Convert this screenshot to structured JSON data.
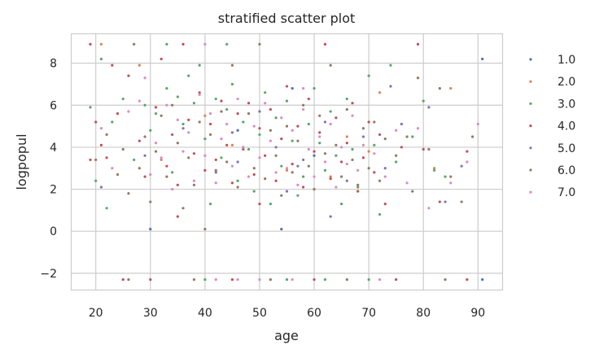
{
  "chart_data": {
    "type": "scatter",
    "title": "stratified scatter plot",
    "xlabel": "age",
    "ylabel": "logpopul",
    "xlim": [
      15.5,
      94.5
    ],
    "ylim": [
      -2.8,
      9.4
    ],
    "xticks": [
      20,
      30,
      40,
      50,
      60,
      70,
      80,
      90
    ],
    "yticks": [
      -2,
      0,
      2,
      4,
      6,
      8
    ],
    "xtick_labels": [
      "20",
      "30",
      "40",
      "50",
      "60",
      "70",
      "80",
      "90"
    ],
    "ytick_labels": [
      "−2",
      "0",
      "2",
      "4",
      "6",
      "8"
    ],
    "grid": true,
    "legend_position": "right",
    "series": [
      {
        "name": "1.0",
        "color": "#4c72b0",
        "points": [
          [
            30,
            0.1
          ],
          [
            54,
            0.1
          ],
          [
            90.8,
            8.2
          ],
          [
            90.8,
            -2.3
          ],
          [
            56,
            6.8
          ],
          [
            46,
            4.8
          ],
          [
            60,
            3.6
          ]
        ]
      },
      {
        "name": "2.0",
        "color": "#dd8452",
        "points": [
          [
            21,
            8.9
          ],
          [
            28,
            7.9
          ],
          [
            72,
            6.6
          ],
          [
            85,
            6.8
          ],
          [
            70,
            3.8
          ],
          [
            40,
            5.5
          ],
          [
            66,
            4.5
          ],
          [
            55,
            2.9
          ],
          [
            82,
            3.0
          ],
          [
            32,
            3.4
          ],
          [
            45,
            4.1
          ],
          [
            63,
            2.6
          ]
        ]
      },
      {
        "name": "3.0",
        "color": "#55a868",
        "points": [
          [
            19,
            5.9
          ],
          [
            20,
            2.4
          ],
          [
            21,
            8.2
          ],
          [
            22,
            1.1
          ],
          [
            23,
            5.2
          ],
          [
            25,
            6.3
          ],
          [
            27,
            3.4
          ],
          [
            29,
            6.0
          ],
          [
            30,
            4.8
          ],
          [
            31,
            5.6
          ],
          [
            33,
            6.8
          ],
          [
            34,
            2.8
          ],
          [
            35,
            6.4
          ],
          [
            36,
            5.1
          ],
          [
            37,
            7.4
          ],
          [
            38,
            6.1
          ],
          [
            39,
            7.9
          ],
          [
            40,
            4.4
          ],
          [
            41,
            1.3
          ],
          [
            42,
            6.3
          ],
          [
            43,
            3.5
          ],
          [
            44,
            5.8
          ],
          [
            45,
            7.0
          ],
          [
            46,
            2.4
          ],
          [
            47,
            5.2
          ],
          [
            48,
            3.9
          ],
          [
            49,
            1.9
          ],
          [
            50,
            4.6
          ],
          [
            51,
            6.6
          ],
          [
            52,
            1.3
          ],
          [
            53,
            5.4
          ],
          [
            54,
            3.1
          ],
          [
            55,
            6.2
          ],
          [
            56,
            4.3
          ],
          [
            57,
            1.7
          ],
          [
            58,
            2.6
          ],
          [
            59,
            5.1
          ],
          [
            60,
            6.8
          ],
          [
            61,
            4.2
          ],
          [
            62,
            2.9
          ],
          [
            63,
            5.7
          ],
          [
            64,
            3.6
          ],
          [
            65,
            1.3
          ],
          [
            66,
            6.3
          ],
          [
            67,
            3.9
          ],
          [
            68,
            2.1
          ],
          [
            70,
            7.4
          ],
          [
            71,
            4.1
          ],
          [
            72,
            0.8
          ],
          [
            74,
            7.9
          ],
          [
            75,
            3.3
          ],
          [
            78,
            4.5
          ],
          [
            80,
            6.2
          ],
          [
            82,
            2.9
          ],
          [
            84,
            2.6
          ],
          [
            40,
            -2.3
          ],
          [
            55,
            -2.3
          ],
          [
            62,
            -2.3
          ],
          [
            70,
            -2.3
          ],
          [
            33,
            8.9
          ],
          [
            44,
            8.9
          ]
        ]
      },
      {
        "name": "4.0",
        "color": "#c44e52",
        "points": [
          [
            19,
            8.9
          ],
          [
            19,
            3.4
          ],
          [
            20,
            5.2
          ],
          [
            21,
            4.1
          ],
          [
            22,
            3.5
          ],
          [
            23,
            7.9
          ],
          [
            24,
            5.6
          ],
          [
            26,
            7.4
          ],
          [
            28,
            4.3
          ],
          [
            29,
            2.6
          ],
          [
            31,
            5.9
          ],
          [
            32,
            8.2
          ],
          [
            33,
            3.1
          ],
          [
            34,
            4.6
          ],
          [
            35,
            2.2
          ],
          [
            36,
            8.9
          ],
          [
            37,
            5.3
          ],
          [
            38,
            3.7
          ],
          [
            39,
            6.6
          ],
          [
            40,
            2.9
          ],
          [
            41,
            5.1
          ],
          [
            42,
            3.4
          ],
          [
            43,
            6.2
          ],
          [
            44,
            4.1
          ],
          [
            45,
            2.3
          ],
          [
            46,
            5.6
          ],
          [
            47,
            3.9
          ],
          [
            48,
            6.1
          ],
          [
            49,
            2.7
          ],
          [
            50,
            4.9
          ],
          [
            51,
            3.6
          ],
          [
            52,
            5.8
          ],
          [
            53,
            2.4
          ],
          [
            54,
            4.4
          ],
          [
            55,
            6.9
          ],
          [
            56,
            3.2
          ],
          [
            57,
            5.0
          ],
          [
            58,
            2.1
          ],
          [
            59,
            6.3
          ],
          [
            60,
            3.8
          ],
          [
            61,
            4.7
          ],
          [
            62,
            8.9
          ],
          [
            63,
            2.5
          ],
          [
            64,
            5.4
          ],
          [
            65,
            3.3
          ],
          [
            66,
            4.2
          ],
          [
            67,
            6.1
          ],
          [
            68,
            1.9
          ],
          [
            69,
            3.5
          ],
          [
            70,
            5.2
          ],
          [
            71,
            2.8
          ],
          [
            72,
            4.6
          ],
          [
            73,
            1.3
          ],
          [
            74,
            6.9
          ],
          [
            76,
            4.0
          ],
          [
            79,
            8.9
          ],
          [
            80,
            3.9
          ],
          [
            83,
            1.4
          ],
          [
            88,
            3.8
          ],
          [
            30,
            -2.3
          ],
          [
            45,
            -2.3
          ],
          [
            60,
            -2.3
          ],
          [
            75,
            -2.3
          ],
          [
            88,
            -2.3
          ],
          [
            25,
            -2.3
          ],
          [
            35,
            0.7
          ],
          [
            50,
            1.3
          ]
        ]
      },
      {
        "name": "5.0",
        "color": "#8172b3",
        "points": [
          [
            21,
            2.1
          ],
          [
            29,
            3.6
          ],
          [
            36,
            4.9
          ],
          [
            42,
            2.8
          ],
          [
            46,
            3.3
          ],
          [
            50,
            5.7
          ],
          [
            53,
            4.0
          ],
          [
            57,
            3.1
          ],
          [
            62,
            5.2
          ],
          [
            66,
            2.4
          ],
          [
            69,
            4.5
          ],
          [
            73,
            3.0
          ],
          [
            76,
            5.1
          ],
          [
            78,
            1.9
          ],
          [
            81,
            5.9
          ],
          [
            84,
            1.4
          ],
          [
            87,
            3.1
          ],
          [
            74,
            6.9
          ],
          [
            55,
            1.9
          ],
          [
            45,
            4.7
          ],
          [
            58,
            3.4
          ],
          [
            63,
            0.7
          ]
        ]
      },
      {
        "name": "6.0",
        "color": "#937860",
        "points": [
          [
            20,
            3.4
          ],
          [
            22,
            4.6
          ],
          [
            24,
            2.7
          ],
          [
            25,
            3.9
          ],
          [
            26,
            1.8
          ],
          [
            27,
            8.9
          ],
          [
            28,
            3.0
          ],
          [
            29,
            4.5
          ],
          [
            30,
            1.4
          ],
          [
            31,
            3.8
          ],
          [
            32,
            5.5
          ],
          [
            33,
            2.6
          ],
          [
            34,
            6.0
          ],
          [
            35,
            4.2
          ],
          [
            36,
            1.1
          ],
          [
            37,
            3.5
          ],
          [
            38,
            2.2
          ],
          [
            39,
            5.2
          ],
          [
            40,
            0.1
          ],
          [
            41,
            4.6
          ],
          [
            42,
            2.9
          ],
          [
            43,
            5.7
          ],
          [
            44,
            3.3
          ],
          [
            45,
            7.9
          ],
          [
            46,
            2.1
          ],
          [
            47,
            4.0
          ],
          [
            48,
            5.6
          ],
          [
            49,
            3.0
          ],
          [
            50,
            8.9
          ],
          [
            51,
            2.5
          ],
          [
            52,
            4.8
          ],
          [
            53,
            3.6
          ],
          [
            54,
            1.7
          ],
          [
            55,
            5.0
          ],
          [
            56,
            2.8
          ],
          [
            57,
            4.3
          ],
          [
            58,
            6.0
          ],
          [
            59,
            3.1
          ],
          [
            60,
            2.0
          ],
          [
            61,
            5.5
          ],
          [
            62,
            3.7
          ],
          [
            63,
            7.9
          ],
          [
            64,
            4.1
          ],
          [
            65,
            2.6
          ],
          [
            66,
            5.8
          ],
          [
            67,
            3.4
          ],
          [
            68,
            2.2
          ],
          [
            69,
            4.9
          ],
          [
            70,
            3.0
          ],
          [
            71,
            5.2
          ],
          [
            72,
            2.4
          ],
          [
            73,
            4.4
          ],
          [
            75,
            3.6
          ],
          [
            77,
            4.5
          ],
          [
            79,
            7.3
          ],
          [
            81,
            3.9
          ],
          [
            83,
            6.8
          ],
          [
            85,
            2.6
          ],
          [
            87,
            1.4
          ],
          [
            89,
            4.5
          ],
          [
            26,
            -2.3
          ],
          [
            38,
            -2.3
          ],
          [
            52,
            -2.3
          ],
          [
            66,
            -2.3
          ],
          [
            84,
            -2.3
          ]
        ]
      },
      {
        "name": "7.0",
        "color": "#da8bc3",
        "points": [
          [
            21,
            4.9
          ],
          [
            23,
            3.0
          ],
          [
            26,
            5.7
          ],
          [
            28,
            6.2
          ],
          [
            29,
            7.3
          ],
          [
            30,
            2.7
          ],
          [
            31,
            4.2
          ],
          [
            32,
            3.5
          ],
          [
            33,
            6.0
          ],
          [
            34,
            2.0
          ],
          [
            35,
            5.3
          ],
          [
            36,
            3.8
          ],
          [
            37,
            4.7
          ],
          [
            38,
            2.4
          ],
          [
            39,
            6.5
          ],
          [
            40,
            3.6
          ],
          [
            41,
            5.6
          ],
          [
            42,
            2.3
          ],
          [
            43,
            4.4
          ],
          [
            44,
            5.1
          ],
          [
            45,
            3.1
          ],
          [
            46,
            6.3
          ],
          [
            47,
            4.0
          ],
          [
            48,
            2.6
          ],
          [
            49,
            5.0
          ],
          [
            50,
            3.5
          ],
          [
            51,
            6.1
          ],
          [
            52,
            4.3
          ],
          [
            53,
            2.8
          ],
          [
            54,
            5.4
          ],
          [
            55,
            3.0
          ],
          [
            56,
            4.8
          ],
          [
            57,
            2.2
          ],
          [
            58,
            5.8
          ],
          [
            59,
            3.9
          ],
          [
            60,
            2.6
          ],
          [
            61,
            4.5
          ],
          [
            62,
            3.3
          ],
          [
            63,
            5.1
          ],
          [
            64,
            2.1
          ],
          [
            65,
            4.0
          ],
          [
            66,
            3.2
          ],
          [
            67,
            5.5
          ],
          [
            68,
            2.9
          ],
          [
            69,
            4.1
          ],
          [
            71,
            3.7
          ],
          [
            73,
            2.6
          ],
          [
            75,
            4.8
          ],
          [
            77,
            2.3
          ],
          [
            79,
            4.9
          ],
          [
            81,
            1.1
          ],
          [
            85,
            2.3
          ],
          [
            88,
            3.3
          ],
          [
            90,
            5.1
          ],
          [
            40,
            8.9
          ],
          [
            42,
            -2.3
          ],
          [
            46,
            -2.3
          ],
          [
            50,
            -2.3
          ],
          [
            56,
            -2.3
          ],
          [
            72,
            -2.3
          ],
          [
            58,
            6.8
          ]
        ]
      }
    ]
  }
}
